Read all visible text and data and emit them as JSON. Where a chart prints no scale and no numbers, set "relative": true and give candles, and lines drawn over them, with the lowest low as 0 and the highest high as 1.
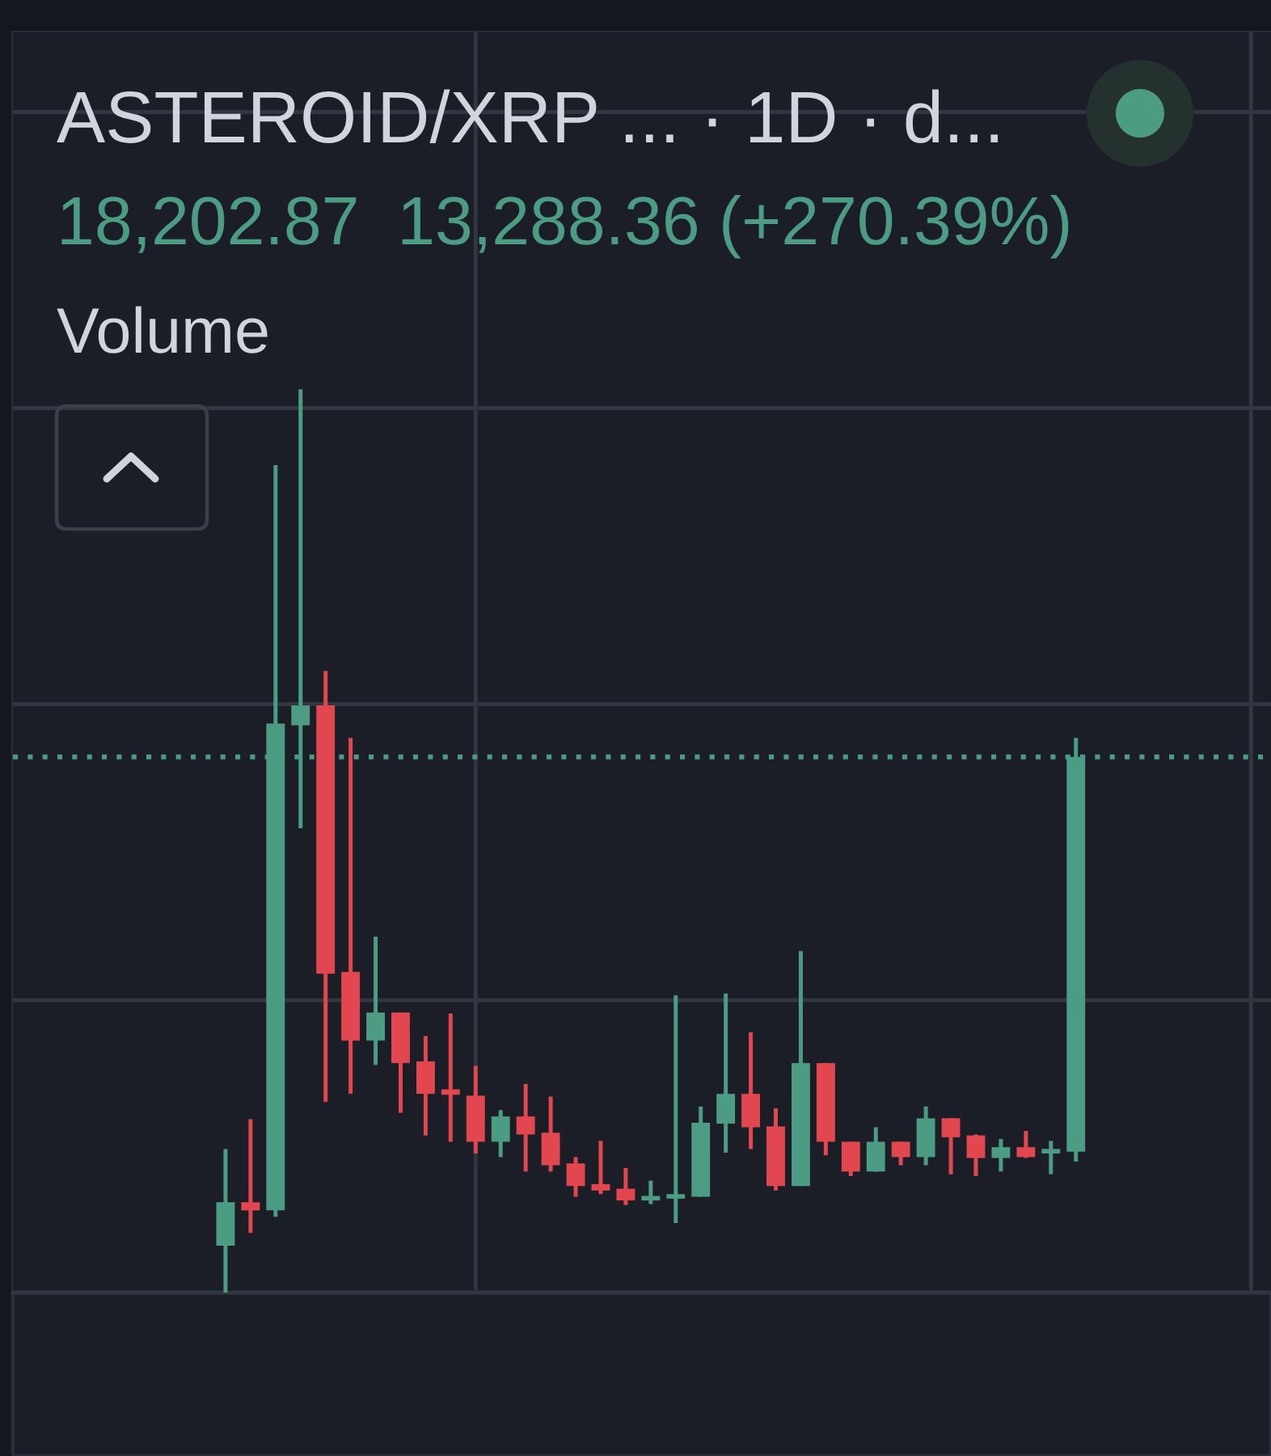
{
  "chart_data": {
    "type": "candlestick",
    "title": "ASTEROID/XRP ... · 1D · d...",
    "subtitle": "18,202.87  13,288.36 (+270.39%)",
    "annotations": [
      "Volume"
    ],
    "relative": true,
    "grid": true,
    "categories": [
      null,
      null,
      null,
      null,
      null,
      null,
      null,
      null,
      null,
      null,
      null,
      null,
      null,
      null,
      null,
      null,
      null,
      null,
      null,
      null,
      null,
      null,
      null,
      null,
      null,
      null,
      null,
      null,
      null,
      null,
      null,
      null,
      null,
      null,
      null
    ],
    "ohlc": [
      [
        0.052,
        0.159,
        0,
        0.1
      ],
      [
        0.1,
        0.192,
        0.066,
        0.091
      ],
      [
        0.091,
        0.916,
        0.084,
        0.63
      ],
      [
        0.628,
        1,
        0.514,
        0.65
      ],
      [
        0.65,
        0.688,
        0.211,
        0.353
      ],
      [
        0.355,
        0.614,
        0.22,
        0.279
      ],
      [
        0.279,
        0.394,
        0.252,
        0.31
      ],
      [
        0.31,
        0.31,
        0.199,
        0.254
      ],
      [
        0.256,
        0.284,
        0.174,
        0.22
      ],
      [
        0.225,
        0.309,
        0.167,
        0.219
      ],
      [
        0.218,
        0.251,
        0.154,
        0.167
      ],
      [
        0.167,
        0.202,
        0.15,
        0.195
      ],
      [
        0.195,
        0.231,
        0.134,
        0.175
      ],
      [
        0.177,
        0.217,
        0.134,
        0.141
      ],
      [
        0.143,
        0.15,
        0.106,
        0.118
      ],
      [
        0.12,
        0.168,
        0.109,
        0.113
      ],
      [
        0.115,
        0.138,
        0.097,
        0.102
      ],
      [
        0.102,
        0.124,
        0.098,
        0.107
      ],
      [
        0.104,
        0.329,
        0.077,
        0.109
      ],
      [
        0.106,
        0.206,
        0.106,
        0.188
      ],
      [
        0.187,
        0.331,
        0.155,
        0.22
      ],
      [
        0.22,
        0.288,
        0.159,
        0.183
      ],
      [
        0.184,
        0.204,
        0.113,
        0.118
      ],
      [
        0.118,
        0.378,
        0.118,
        0.254
      ],
      [
        0.254,
        0.254,
        0.152,
        0.167
      ],
      [
        0.167,
        0.167,
        0.129,
        0.134
      ],
      [
        0.134,
        0.183,
        0.134,
        0.167
      ],
      [
        0.167,
        0.167,
        0.141,
        0.15
      ],
      [
        0.15,
        0.206,
        0.141,
        0.193
      ],
      [
        0.193,
        0.193,
        0.131,
        0.172
      ],
      [
        0.174,
        0.175,
        0.129,
        0.149
      ],
      [
        0.149,
        0.17,
        0.134,
        0.161
      ],
      [
        0.161,
        0.179,
        0.149,
        0.15
      ],
      [
        0.154,
        0.168,
        0.131,
        0.159
      ],
      [
        0.156,
        0.614,
        0.145,
        0.593
      ]
    ],
    "colors": [
      "#4b9c83",
      "#e2474f",
      "#4b9c83",
      "#4b9c83",
      "#e2474f",
      "#e2474f",
      "#4b9c83",
      "#e2474f",
      "#e2474f",
      "#e2474f",
      "#e2474f",
      "#4b9c83",
      "#e2474f",
      "#e2474f",
      "#e2474f",
      "#e2474f",
      "#e2474f",
      "#4b9c83",
      "#4b9c83",
      "#4b9c83",
      "#4b9c83",
      "#e2474f",
      "#e2474f",
      "#4b9c83",
      "#e2474f",
      "#e2474f",
      "#4b9c83",
      "#e2474f",
      "#4b9c83",
      "#e2474f",
      "#e2474f",
      "#4b9c83",
      "#e2474f",
      "#4b9c83",
      "#4b9c83"
    ],
    "ref_lines": [
      {
        "axis": "y",
        "value": 0.593,
        "color": "#4b9c83",
        "line_style": "dotted"
      }
    ]
  }
}
